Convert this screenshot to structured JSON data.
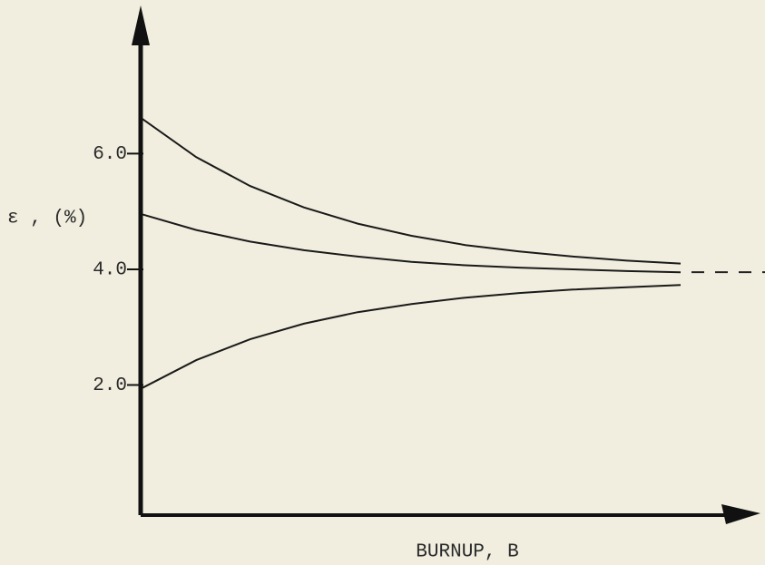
{
  "chart_data": {
    "type": "line",
    "y_label": "ε , (%)",
    "x_label": "BURNUP, B",
    "categories": [
      null,
      null,
      null,
      null,
      null,
      null,
      null,
      null,
      null,
      null,
      null
    ],
    "series": [
      {
        "color": "#1a1a1a",
        "values": [
          6.6,
          5.94,
          5.44,
          5.07,
          4.79,
          4.58,
          4.42,
          4.31,
          4.22,
          4.15,
          4.1
        ]
      },
      {
        "color": "#1a1a1a",
        "values": [
          4.95,
          4.68,
          4.48,
          4.33,
          4.22,
          4.13,
          4.07,
          4.03,
          4.0,
          3.97,
          3.95
        ]
      },
      {
        "color": "#1a1a1a",
        "values": [
          1.95,
          2.43,
          2.79,
          3.06,
          3.26,
          3.4,
          3.51,
          3.59,
          3.65,
          3.69,
          3.73
        ]
      }
    ],
    "asymptote": 3.95,
    "ylim": [
      -0.25,
      8.5
    ],
    "yticks": [
      {
        "value": 2,
        "label": "2.0"
      },
      {
        "value": 4,
        "label": "4.0"
      },
      {
        "value": 6,
        "label": "6.0"
      }
    ]
  }
}
